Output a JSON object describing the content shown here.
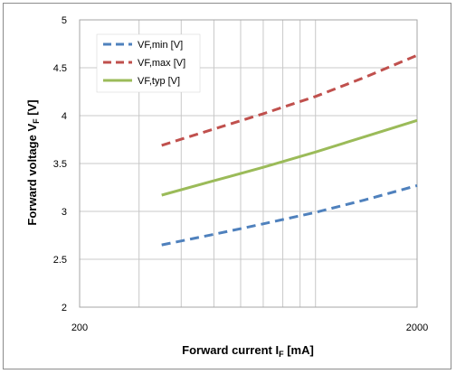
{
  "chart_data": {
    "type": "line",
    "xlabel": {
      "main": "Forward current I",
      "sub": "F",
      "suffix": " [mA]"
    },
    "ylabel": {
      "main": "Forward voltage V",
      "sub": "F",
      "suffix": " [V]"
    },
    "xscale": "log",
    "xlim": [
      200,
      2000
    ],
    "ylim": [
      2,
      5
    ],
    "x_tick_labels": [
      "200",
      "2000"
    ],
    "y_tick_labels": [
      "2",
      "2.5",
      "3",
      "3.5",
      "4",
      "4.5",
      "5"
    ],
    "grid": true,
    "legend_position": "top-left",
    "series": [
      {
        "name": "VF,min [V]",
        "color": "#4f81bd",
        "dash": "dashed",
        "x": [
          350,
          500,
          700,
          1000,
          1400,
          2000
        ],
        "y": [
          2.65,
          2.76,
          2.87,
          2.99,
          3.12,
          3.27
        ]
      },
      {
        "name": "VF,max [V]",
        "color": "#c0504d",
        "dash": "dashed",
        "x": [
          350,
          500,
          700,
          1000,
          1400,
          2000
        ],
        "y": [
          3.69,
          3.86,
          4.02,
          4.2,
          4.4,
          4.63
        ]
      },
      {
        "name": "VF,typ [V]",
        "color": "#9bbb59",
        "dash": "solid",
        "x": [
          350,
          500,
          700,
          1000,
          1400,
          2000
        ],
        "y": [
          3.17,
          3.32,
          3.46,
          3.62,
          3.78,
          3.95
        ]
      }
    ]
  }
}
